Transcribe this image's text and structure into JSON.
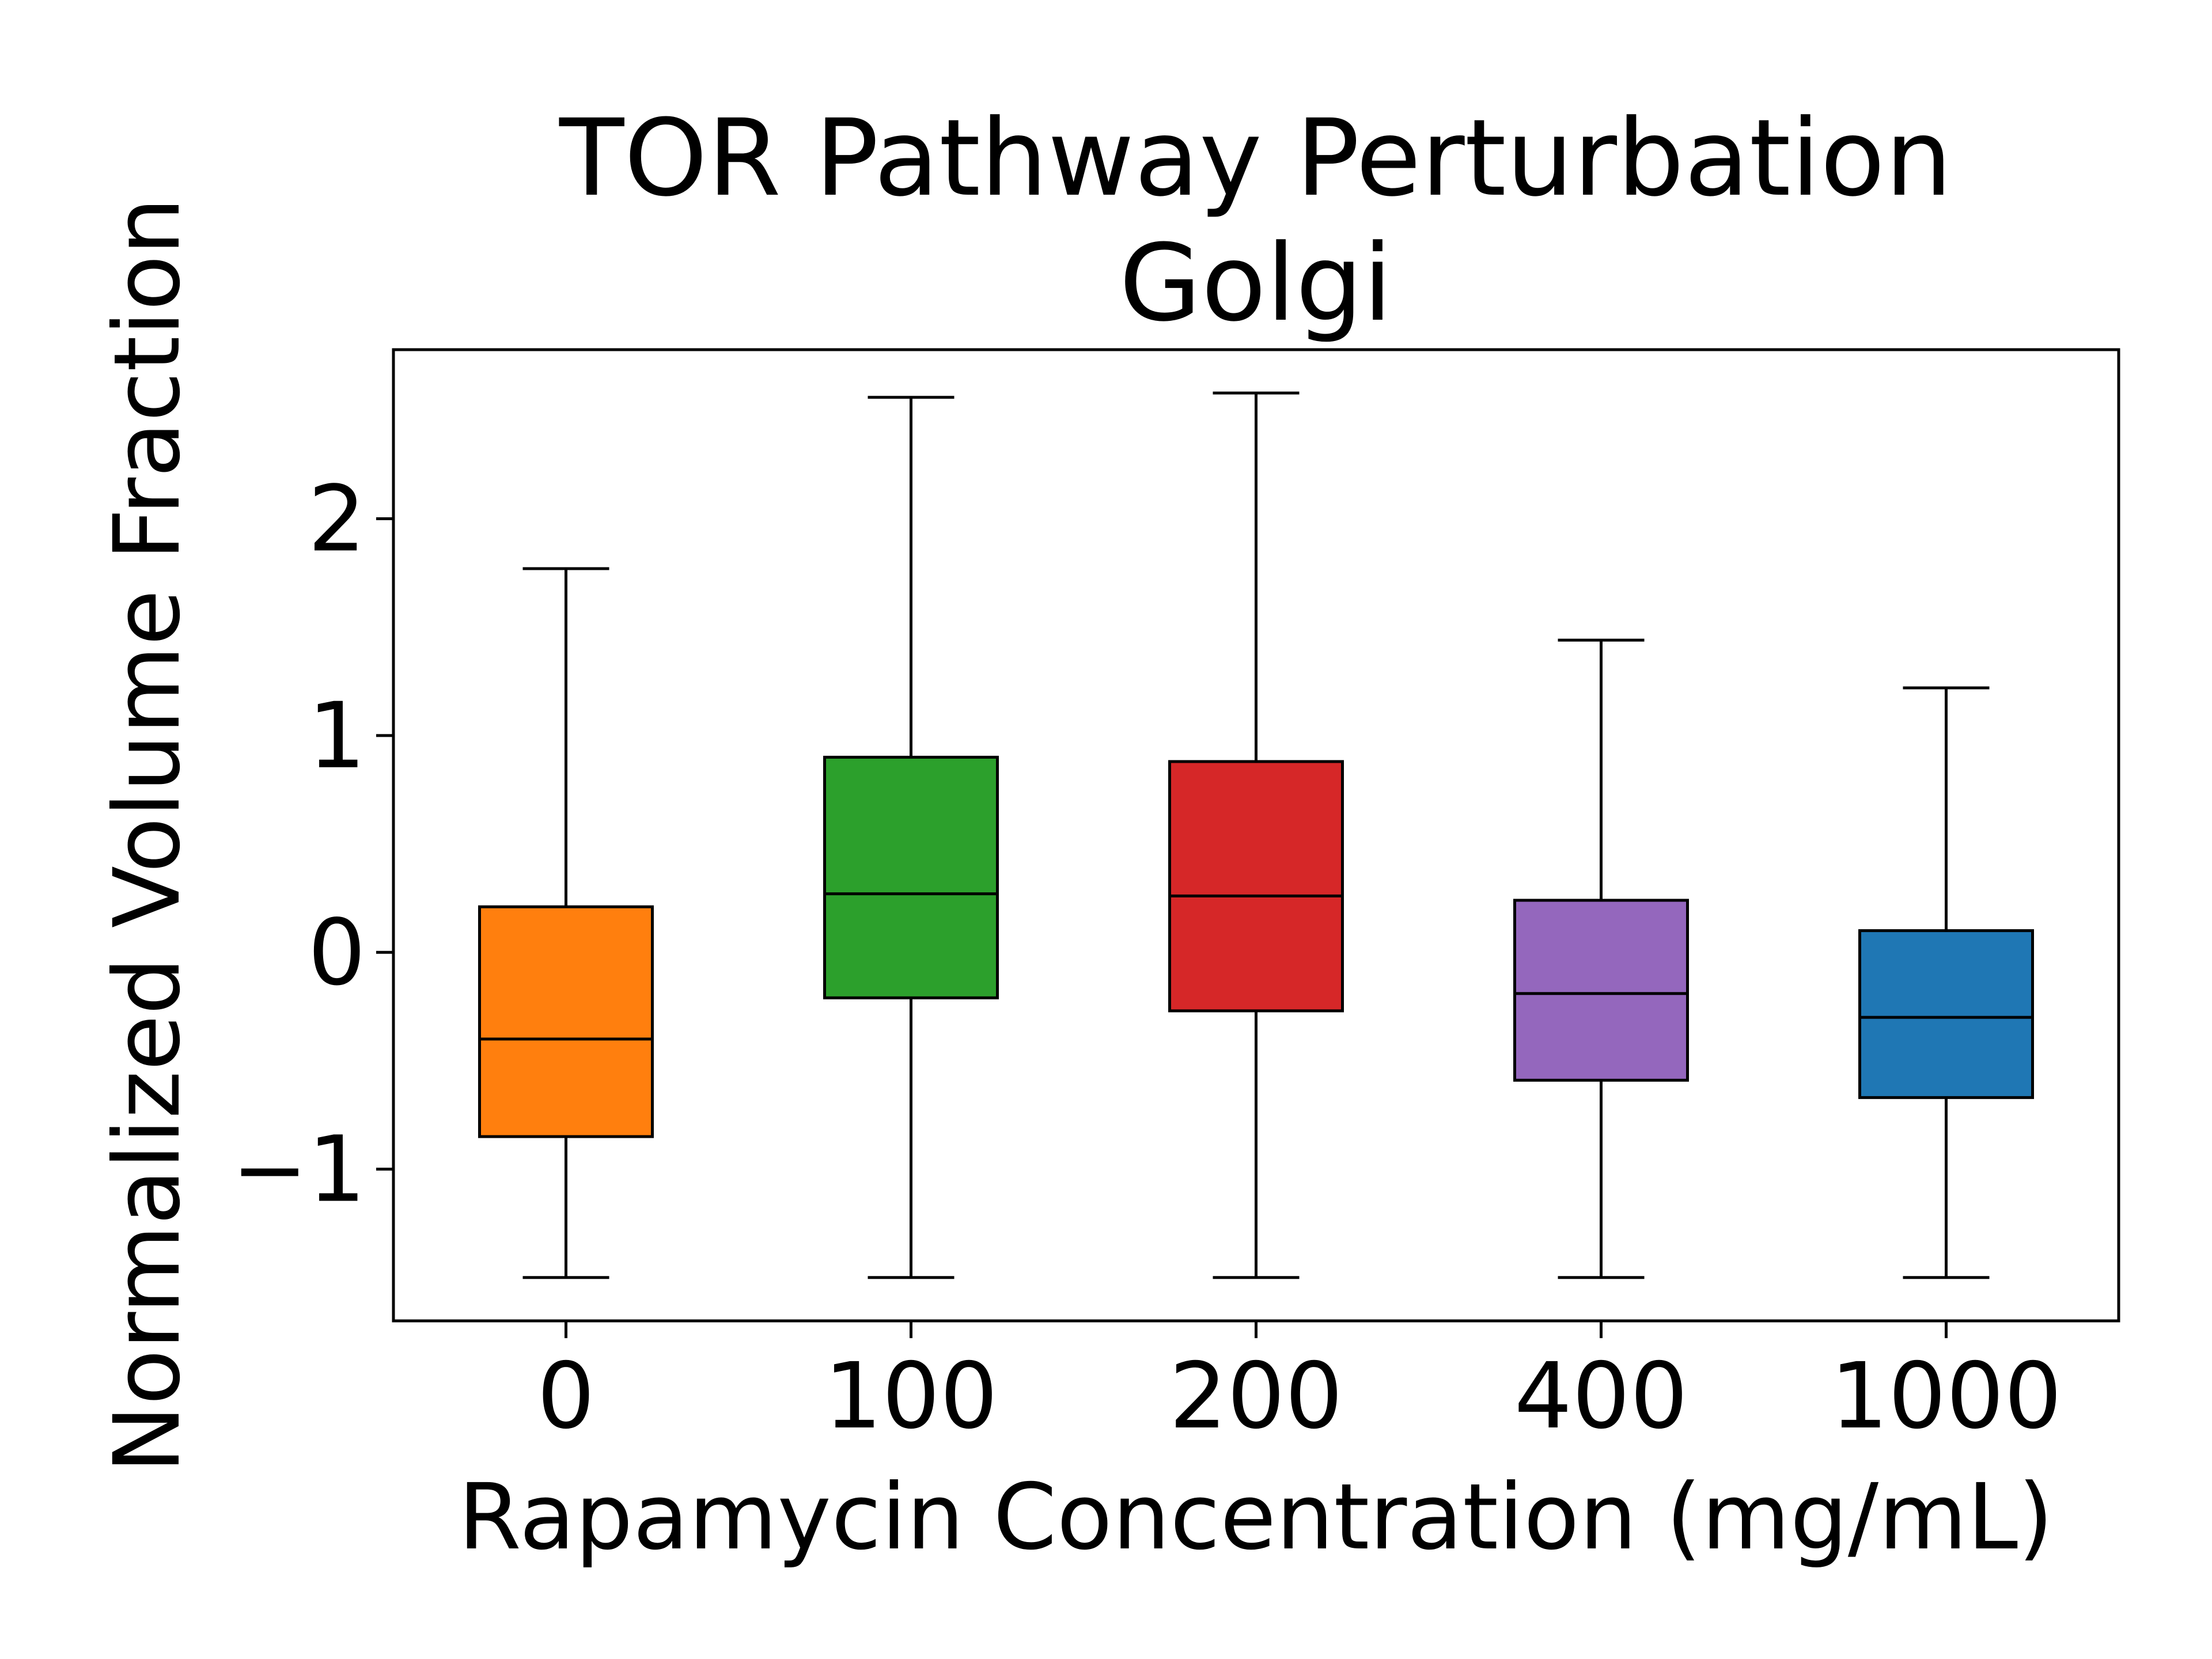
{
  "chart_data": {
    "type": "box",
    "title": "TOR Pathway Perturbation",
    "subtitle": "Golgi",
    "xlabel": "Rapamycin Concentration (mg/mL)",
    "ylabel": "Normalized Volume Fraction",
    "categories": [
      "0",
      "100",
      "200",
      "400",
      "1000"
    ],
    "ylim": [
      -1.7,
      2.78
    ],
    "yticks": [
      -1,
      0,
      1,
      2
    ],
    "ytick_labels": [
      "−1",
      "0",
      "1",
      "2"
    ],
    "grid": false,
    "boxes": [
      {
        "category": "0",
        "whisker_low": -1.5,
        "q1": -0.85,
        "median": -0.4,
        "q3": 0.21,
        "whisker_high": 1.77,
        "color": "#ff7f0e"
      },
      {
        "category": "100",
        "whisker_low": -1.5,
        "q1": -0.21,
        "median": 0.27,
        "q3": 0.9,
        "whisker_high": 2.56,
        "color": "#2ca02c"
      },
      {
        "category": "200",
        "whisker_low": -1.5,
        "q1": -0.27,
        "median": 0.26,
        "q3": 0.88,
        "whisker_high": 2.58,
        "color": "#d62728"
      },
      {
        "category": "400",
        "whisker_low": -1.5,
        "q1": -0.59,
        "median": -0.19,
        "q3": 0.24,
        "whisker_high": 1.44,
        "color": "#9467bd"
      },
      {
        "category": "1000",
        "whisker_low": -1.5,
        "q1": -0.67,
        "median": -0.3,
        "q3": 0.1,
        "whisker_high": 1.22,
        "color": "#1f77b4"
      }
    ]
  }
}
